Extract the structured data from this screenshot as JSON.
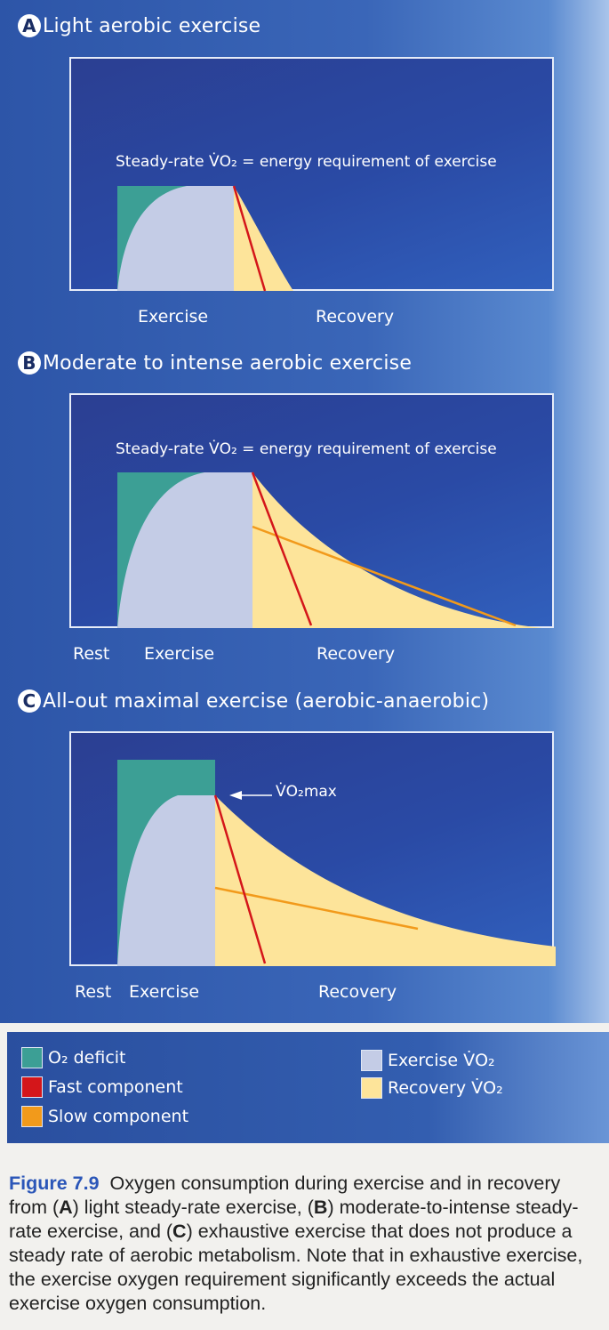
{
  "colors": {
    "o2_deficit": "#3c9f95",
    "exercise_vo2": "#c4cce6",
    "recovery_vo2": "#fde49a",
    "fast_component": "#d4161a",
    "slow_component": "#f29a1b"
  },
  "panels": [
    {
      "letter": "A",
      "title": "Light aerobic exercise",
      "annotation": "Steady-rate V̇O₂ = energy requirement of exercise",
      "labels": {
        "rest": "",
        "exercise": "Exercise",
        "recovery": "Recovery"
      }
    },
    {
      "letter": "B",
      "title": "Moderate to intense aerobic exercise",
      "annotation": "Steady-rate V̇O₂ = energy requirement of exercise",
      "labels": {
        "rest": "Rest",
        "exercise": "Exercise",
        "recovery": "Recovery"
      }
    },
    {
      "letter": "C",
      "title": "All-out maximal exercise (aerobic-anaerobic)",
      "annotation": "V̇O₂max",
      "labels": {
        "rest": "Rest",
        "exercise": "Exercise",
        "recovery": "Recovery"
      }
    }
  ],
  "legend": {
    "o2_deficit": "O₂ deficit",
    "fast_component": "Fast component",
    "slow_component": "Slow component",
    "exercise_vo2": "Exercise V̇O₂",
    "recovery_vo2": "Recovery V̇O₂"
  },
  "caption": {
    "figure_label": "Figure 7.9",
    "text_1": "Oxygen consumption during exercise and in recovery from (",
    "a": "A",
    "text_2": ") light steady-rate exercise, (",
    "b": "B",
    "text_3": ") moderate-to-intense steady-rate exercise, and (",
    "c": "C",
    "text_4": ") exhaustive exercise that does not produce a steady rate of aerobic metabolism. Note that in exhaustive exercise, the exercise oxygen requirement significantly exceeds the actual exercise oxygen consumption."
  }
}
